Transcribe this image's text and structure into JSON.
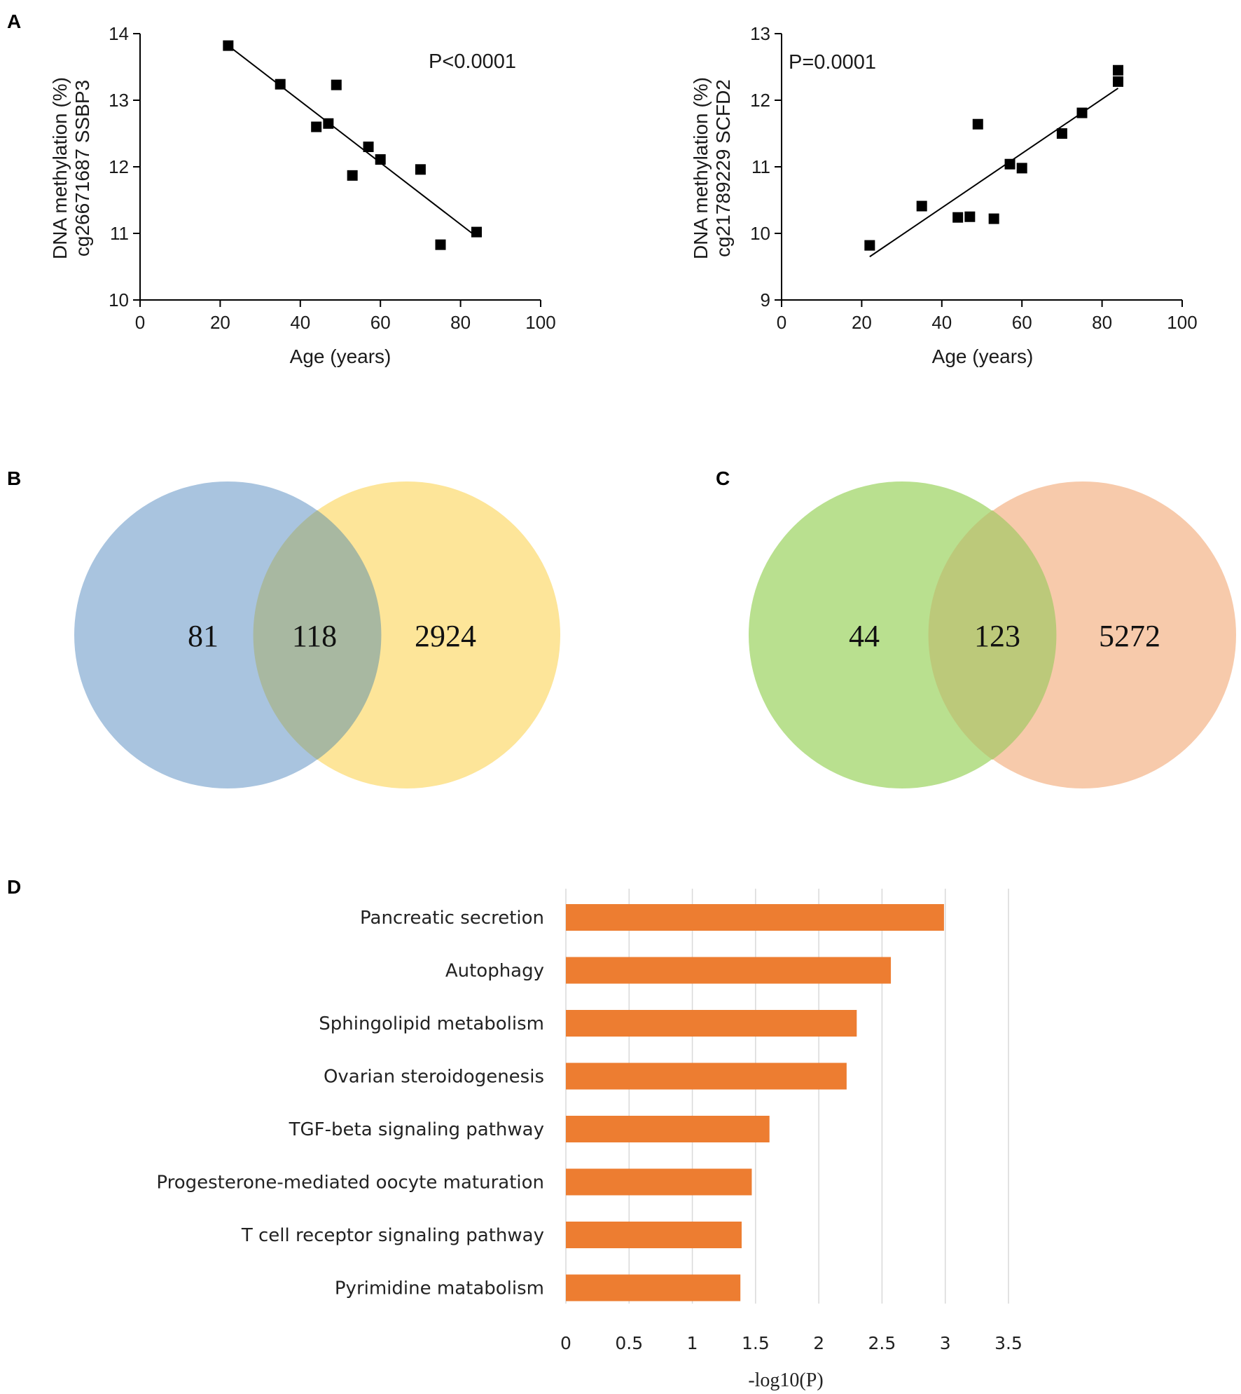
{
  "panels": {
    "A": "A",
    "B": "B",
    "C": "C",
    "D": "D"
  },
  "chart_data": [
    {
      "id": "A-left",
      "type": "scatter",
      "title": "",
      "xlabel": "Age (years)",
      "ylabel_line1": "DNA methylation (%)",
      "ylabel_line2": "cg26671687 SSBP3",
      "annotation": "P<0.0001",
      "xlim": [
        0,
        100
      ],
      "ylim": [
        10,
        14
      ],
      "xticks": [
        0,
        20,
        40,
        60,
        80,
        100
      ],
      "yticks": [
        10,
        11,
        12,
        13,
        14
      ],
      "points": [
        {
          "x": 22,
          "y": 13.82
        },
        {
          "x": 35,
          "y": 13.24
        },
        {
          "x": 44,
          "y": 12.6
        },
        {
          "x": 47,
          "y": 12.65
        },
        {
          "x": 49,
          "y": 13.23
        },
        {
          "x": 53,
          "y": 11.87
        },
        {
          "x": 57,
          "y": 12.3
        },
        {
          "x": 60,
          "y": 12.11
        },
        {
          "x": 70,
          "y": 11.96
        },
        {
          "x": 75,
          "y": 10.83
        },
        {
          "x": 84,
          "y": 11.02
        }
      ],
      "fit": {
        "x": [
          22,
          84
        ],
        "y": [
          13.82,
          10.95
        ]
      }
    },
    {
      "id": "A-right",
      "type": "scatter",
      "title": "",
      "xlabel": "Age (years)",
      "ylabel_line1": "DNA methylation (%)",
      "ylabel_line2": "cg21789229 SCFD2",
      "annotation": "P=0.0001",
      "xlim": [
        0,
        100
      ],
      "ylim": [
        9,
        13
      ],
      "xticks": [
        0,
        20,
        40,
        60,
        80,
        100
      ],
      "yticks": [
        9,
        10,
        11,
        12,
        13
      ],
      "points": [
        {
          "x": 22,
          "y": 9.82
        },
        {
          "x": 35,
          "y": 10.41
        },
        {
          "x": 44,
          "y": 10.24
        },
        {
          "x": 47,
          "y": 10.25
        },
        {
          "x": 49,
          "y": 11.64
        },
        {
          "x": 53,
          "y": 10.22
        },
        {
          "x": 57,
          "y": 11.04
        },
        {
          "x": 60,
          "y": 10.98
        },
        {
          "x": 70,
          "y": 11.5
        },
        {
          "x": 75,
          "y": 11.81
        },
        {
          "x": 84,
          "y": 12.45
        },
        {
          "x": 84,
          "y": 12.28
        }
      ],
      "fit": {
        "x": [
          22,
          84
        ],
        "y": [
          9.65,
          12.18
        ]
      }
    },
    {
      "id": "B",
      "type": "venn",
      "left_only": "81",
      "overlap": "118",
      "right_only": "2924",
      "left_color": "#a9c4df",
      "right_color": "#fde599",
      "overlap_color": "#a8b8a1"
    },
    {
      "id": "C",
      "type": "venn",
      "left_only": "44",
      "overlap": "123",
      "right_only": "5272",
      "left_color": "#b9e08f",
      "right_color": "#f7caab",
      "overlap_color": "#bcc97a"
    },
    {
      "id": "D",
      "type": "bar",
      "orientation": "horizontal",
      "xlabel": "-log10(P)",
      "xlim": [
        0,
        3.5
      ],
      "xticks": [
        "0",
        "0.5",
        "1",
        "1.5",
        "2",
        "2.5",
        "3",
        "3.5"
      ],
      "bar_color": "#ed7d31",
      "categories": [
        "Pancreatic secretion",
        "Autophagy",
        "Sphingolipid metabolism",
        "Ovarian steroidogenesis",
        "TGF-beta signaling pathway",
        "Progesterone-mediated oocyte maturation",
        "T cell receptor signaling pathway",
        "Pyrimidine matabolism"
      ],
      "values": [
        2.99,
        2.57,
        2.3,
        2.22,
        1.61,
        1.47,
        1.39,
        1.38
      ]
    }
  ]
}
